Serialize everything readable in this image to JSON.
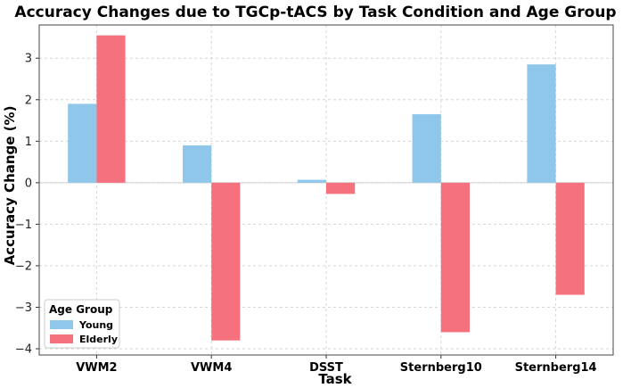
{
  "chart_data": {
    "type": "bar",
    "title": "Accuracy Changes due to TGCp-tACS by Task Condition and Age Group",
    "xlabel": "Task",
    "ylabel": "Accuracy Change (%)",
    "categories": [
      "VWM2",
      "VWM4",
      "DSST",
      "Sternberg10",
      "Sternberg14"
    ],
    "series": [
      {
        "name": "Young",
        "color": "#8ec7ea",
        "values": [
          1.9,
          0.9,
          0.07,
          1.65,
          2.85
        ]
      },
      {
        "name": "Elderly",
        "color": "#f5717e",
        "values": [
          3.55,
          -3.8,
          -0.27,
          -3.6,
          -2.7
        ]
      }
    ],
    "ylim": [
      -4.15,
      3.8
    ],
    "yticks": [
      -4,
      -3,
      -2,
      -1,
      0,
      1,
      2,
      3
    ],
    "ytick_labels": [
      "−4",
      "−3",
      "−2",
      "−1",
      "0",
      "1",
      "2",
      "3"
    ],
    "grid": true,
    "legend": {
      "title": "Age Group",
      "position": "bottom-left"
    }
  }
}
